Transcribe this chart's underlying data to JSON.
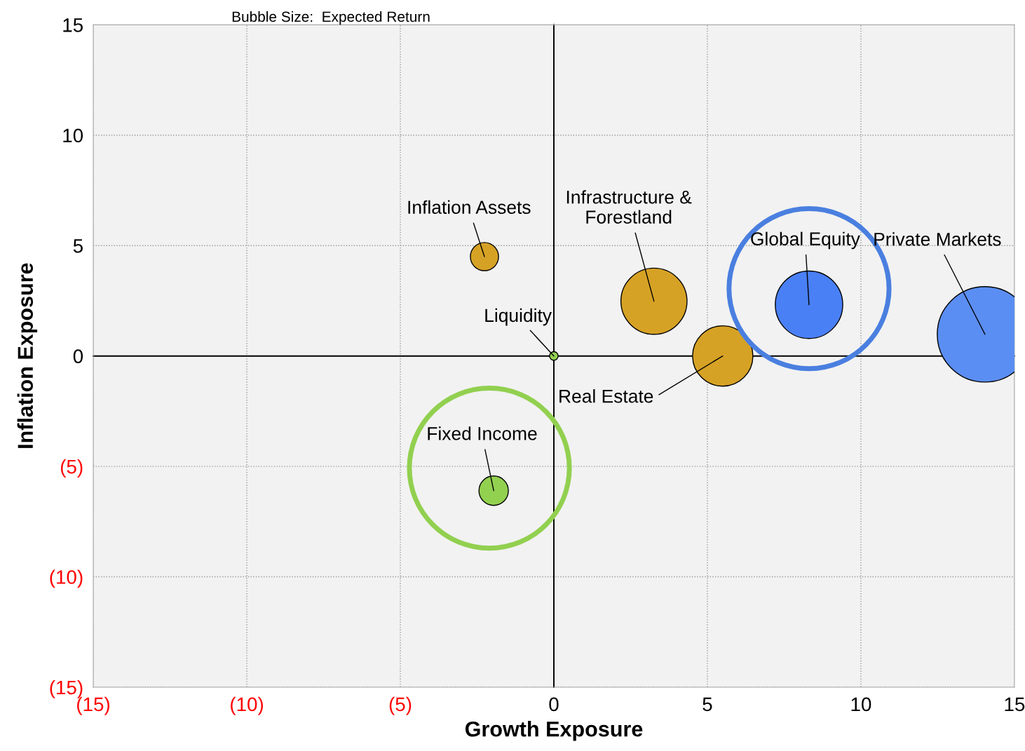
{
  "chart_data": {
    "type": "bubble",
    "title": "Bubble Size:  Expected Return",
    "xlabel": "Growth Exposure",
    "ylabel": "Inflation Exposure",
    "xlim": [
      -15,
      15
    ],
    "ylim": [
      -15,
      15
    ],
    "xticks": [
      {
        "value": -15,
        "label": "(15)"
      },
      {
        "value": -10,
        "label": "(10)"
      },
      {
        "value": -5,
        "label": "(5)"
      },
      0,
      5,
      10,
      15
    ],
    "yticks": [
      {
        "value": -15,
        "label": "(15)"
      },
      {
        "value": -10,
        "label": "(10)"
      },
      {
        "value": -5,
        "label": "(5)"
      },
      0,
      5,
      10,
      15
    ],
    "grid": true,
    "legend": false,
    "series": [
      {
        "name": "Inflation Assets",
        "color": "#D6A225",
        "x": [
          -2.26
        ],
        "values": [
          4.5
        ],
        "sizes": [
          0.087
        ]
      },
      {
        "name": "Infrastructure & Forestland",
        "color": "#D6A225",
        "x": [
          3.26
        ],
        "values": [
          2.48
        ],
        "sizes": [
          0.48
        ]
      },
      {
        "name": "Liquidity",
        "color": "#92D050",
        "x": [
          0
        ],
        "values": [
          0
        ],
        "sizes": [
          0.008
        ]
      },
      {
        "name": "Real Estate",
        "color": "#D6A225",
        "x": [
          5.5
        ],
        "values": [
          0
        ],
        "sizes": [
          0.4
        ]
      },
      {
        "name": "Global Equity",
        "color": "#4A80F5",
        "x": [
          8.31
        ],
        "values": [
          2.32
        ],
        "sizes": [
          0.5
        ]
      },
      {
        "name": "Private Markets",
        "color": "#5B8EF3",
        "x": [
          14.04
        ],
        "values": [
          0.98
        ],
        "sizes": [
          1
        ]
      },
      {
        "name": "Fixed Income",
        "color": "#92D050",
        "x": [
          -1.96
        ],
        "values": [
          -6.1
        ],
        "sizes": [
          0.095
        ]
      },
      {
        "type": "scatter",
        "color": "#92D050",
        "x": [
          -2.1
        ],
        "values": [
          -5.08
        ]
      },
      {
        "type": "scatter",
        "color": "#4A7FE0",
        "x": [
          8.31
        ],
        "values": [
          3.05
        ]
      }
    ]
  }
}
